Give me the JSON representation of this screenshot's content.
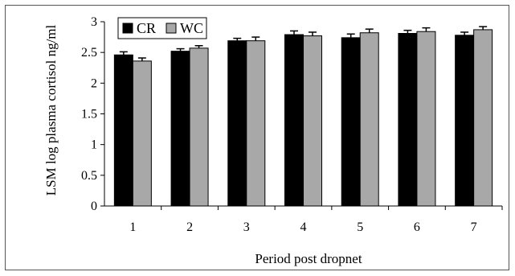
{
  "chart_data": {
    "type": "bar",
    "title": "",
    "xlabel": "Period post dropnet",
    "ylabel": "LSM log plasma cortisol ng/ml",
    "categories": [
      "1",
      "2",
      "3",
      "4",
      "5",
      "6",
      "7"
    ],
    "series": [
      {
        "name": "CR",
        "color": "#000000",
        "values": [
          2.46,
          2.52,
          2.69,
          2.79,
          2.74,
          2.81,
          2.78
        ],
        "errors": [
          0.05,
          0.04,
          0.04,
          0.06,
          0.06,
          0.05,
          0.05
        ]
      },
      {
        "name": "WC",
        "color": "#a8a8a8",
        "values": [
          2.36,
          2.57,
          2.69,
          2.77,
          2.82,
          2.84,
          2.87
        ],
        "errors": [
          0.05,
          0.04,
          0.06,
          0.06,
          0.06,
          0.06,
          0.05
        ]
      }
    ],
    "ylim": [
      0,
      3
    ],
    "yticks": [
      "0",
      "0.5",
      "1",
      "1.5",
      "2",
      "2.5",
      "3"
    ],
    "error_bars": true,
    "grid": false,
    "legend_position": "top-left"
  }
}
